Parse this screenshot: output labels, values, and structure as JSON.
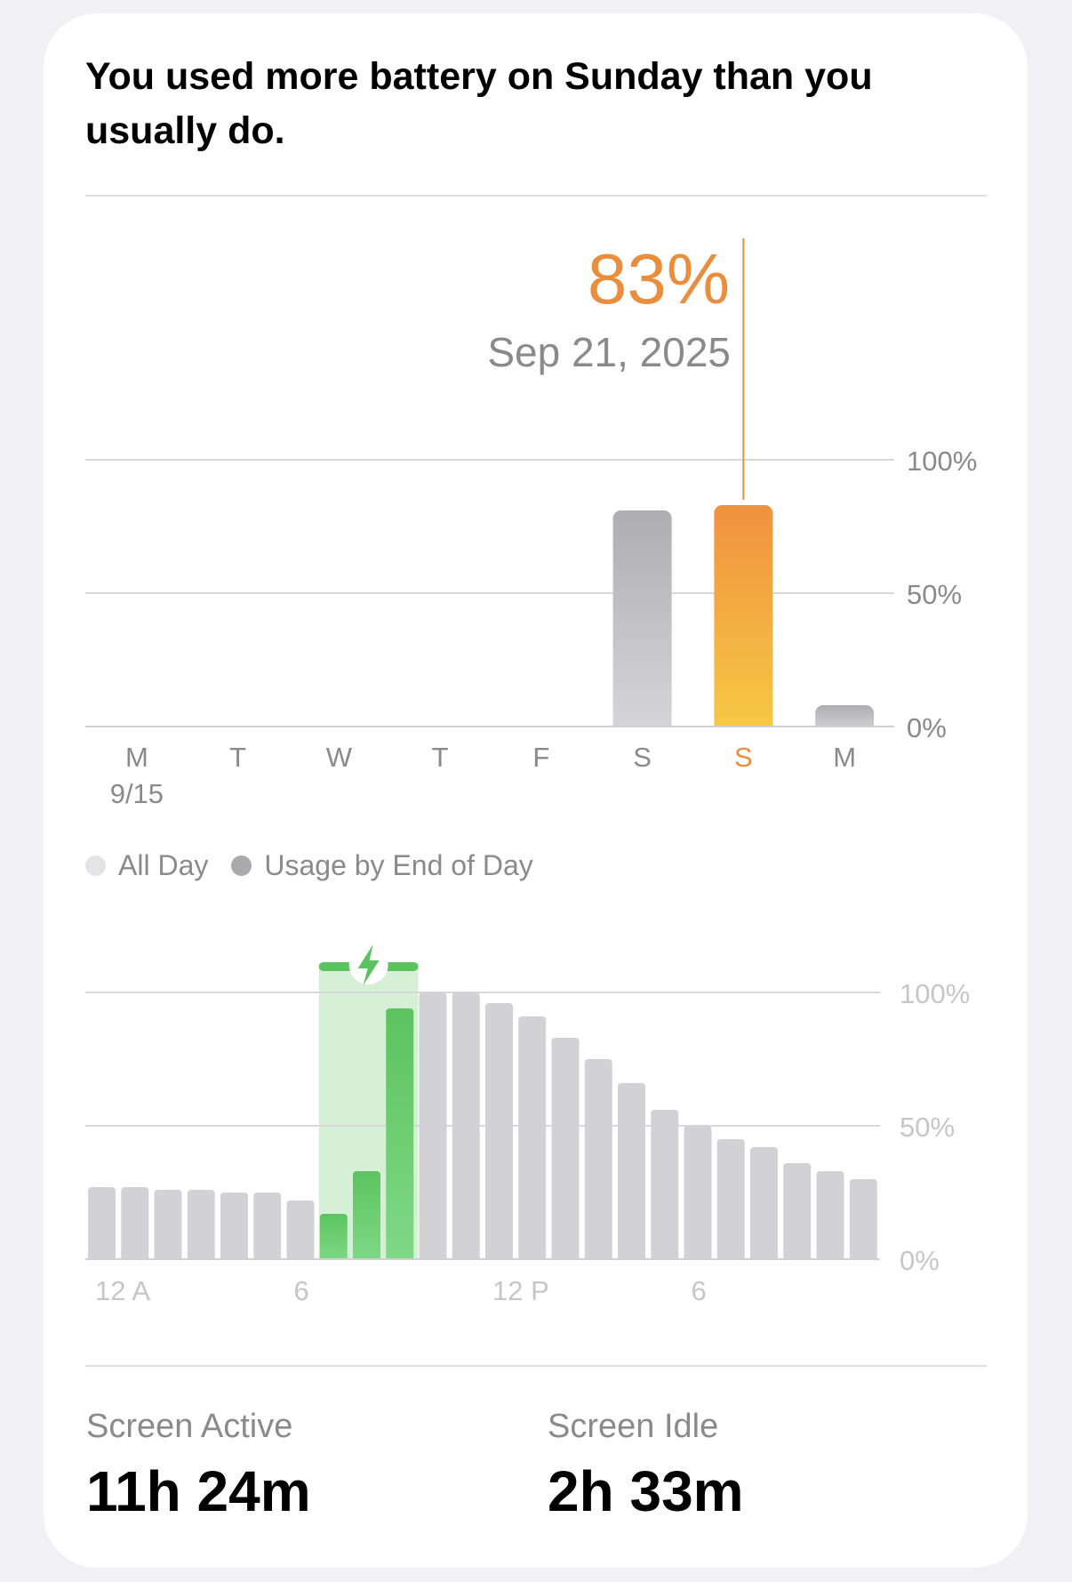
{
  "headline": "You used more battery on Sunday than you usually do.",
  "callout": {
    "value": "83%",
    "date": "Sep 21, 2025"
  },
  "colors": {
    "accent_orange": "#EA8E3E",
    "orange_gradient_top": "#F0923F",
    "orange_gradient_bottom": "#F6C944",
    "gray_bar": "#D2D2D6",
    "charging_green": "#5AC35E",
    "charging_band": "#D5F0D6",
    "label_gray": "#8A8A8E",
    "light_label_gray": "#C6C6CA"
  },
  "legend": [
    {
      "label": "All Day",
      "color": "#E4E4E6"
    },
    {
      "label": "Usage by End of Day",
      "color": "#A9A9AE"
    }
  ],
  "chart_data": [
    {
      "type": "bar",
      "categories": [
        "M",
        "T",
        "W",
        "T",
        "F",
        "S",
        "S",
        "M"
      ],
      "sub_labels": [
        "9/15",
        "",
        "",
        "",
        "",
        "",
        "",
        ""
      ],
      "values": [
        0,
        0,
        0,
        0,
        0,
        81,
        83,
        8
      ],
      "highlight_index": 6,
      "y_ticks": [
        "100%",
        "50%",
        "0%"
      ],
      "ylim": [
        0,
        100
      ],
      "grid": true
    },
    {
      "type": "bar",
      "x_ticks": [
        "12 A",
        "6",
        "12 P",
        "6"
      ],
      "x_tick_hours": [
        0,
        6,
        12,
        18
      ],
      "hours": [
        0,
        1,
        2,
        3,
        4,
        5,
        6,
        7,
        8,
        9,
        10,
        11,
        12,
        13,
        14,
        15,
        16,
        17,
        18,
        19,
        20,
        21,
        22,
        23
      ],
      "values": [
        27,
        27,
        26,
        26,
        25,
        25,
        22,
        17,
        33,
        94,
        100,
        100,
        96,
        91,
        83,
        75,
        66,
        56,
        50,
        45,
        42,
        36,
        33,
        30
      ],
      "charging_hours": [
        7,
        8,
        9
      ],
      "charging_icon": "lightning-bolt-icon",
      "y_ticks": [
        "100%",
        "50%",
        "0%"
      ],
      "ylim": [
        0,
        100
      ],
      "grid": true
    }
  ],
  "stats": [
    {
      "label": "Screen Active",
      "value": "11h 24m"
    },
    {
      "label": "Screen Idle",
      "value": "2h 33m"
    }
  ]
}
